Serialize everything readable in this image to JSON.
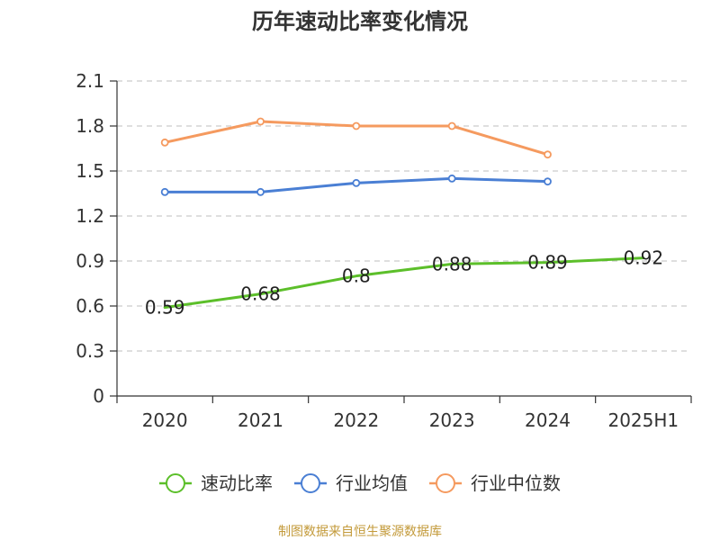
{
  "source": "制图数据来自恒生聚源数据库",
  "chart_data": {
    "type": "line",
    "title": "历年速动比率变化情况",
    "xlabel": "",
    "ylabel": "",
    "categories": [
      "2020",
      "2021",
      "2022",
      "2023",
      "2024",
      "2025H1"
    ],
    "ylim": [
      0,
      2.1
    ],
    "yticks": [
      "0",
      "0.3",
      "0.6",
      "0.9",
      "1.2",
      "1.5",
      "1.8",
      "2.1"
    ],
    "grid": true,
    "legend_position": "bottom",
    "series": [
      {
        "name": "速动比率",
        "color": "#5cbf2a",
        "values": [
          0.59,
          0.68,
          0.8,
          0.88,
          0.89,
          0.92
        ],
        "labels": [
          "0.59",
          "0.68",
          "0.8",
          "0.88",
          "0.89",
          "0.92"
        ],
        "show_labels": true,
        "show_markers": false
      },
      {
        "name": "行业均值",
        "color": "#4a7fd4",
        "values": [
          1.36,
          1.36,
          1.42,
          1.45,
          1.43,
          null
        ],
        "show_labels": false,
        "show_markers": true
      },
      {
        "name": "行业中位数",
        "color": "#f59a5f",
        "values": [
          1.69,
          1.83,
          1.8,
          1.8,
          1.61,
          null
        ],
        "show_labels": false,
        "show_markers": true
      }
    ]
  }
}
